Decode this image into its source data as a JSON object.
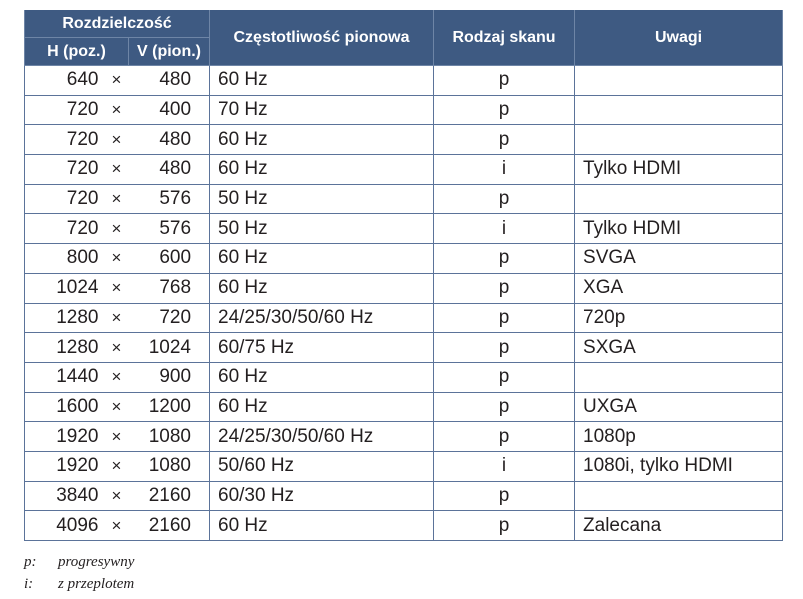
{
  "header": {
    "resolution": "Rozdzielczość",
    "h": "H (poz.)",
    "v": "V (pion.)",
    "freq": "Częstotliwość pionowa",
    "scan": "Rodzaj skanu",
    "notes": "Uwagi"
  },
  "separator": "×",
  "rows": [
    {
      "h": "640",
      "v": "480",
      "f": "60 Hz",
      "s": "p",
      "n": ""
    },
    {
      "h": "720",
      "v": "400",
      "f": "70 Hz",
      "s": "p",
      "n": ""
    },
    {
      "h": "720",
      "v": "480",
      "f": "60 Hz",
      "s": "p",
      "n": ""
    },
    {
      "h": "720",
      "v": "480",
      "f": "60 Hz",
      "s": "i",
      "n": "Tylko HDMI"
    },
    {
      "h": "720",
      "v": "576",
      "f": "50 Hz",
      "s": "p",
      "n": ""
    },
    {
      "h": "720",
      "v": "576",
      "f": "50 Hz",
      "s": "i",
      "n": "Tylko HDMI"
    },
    {
      "h": "800",
      "v": "600",
      "f": "60 Hz",
      "s": "p",
      "n": "SVGA"
    },
    {
      "h": "1024",
      "v": "768",
      "f": "60 Hz",
      "s": "p",
      "n": "XGA"
    },
    {
      "h": "1280",
      "v": "720",
      "f": "24/25/30/50/60 Hz",
      "s": "p",
      "n": "720p"
    },
    {
      "h": "1280",
      "v": "1024",
      "f": "60/75 Hz",
      "s": "p",
      "n": "SXGA"
    },
    {
      "h": "1440",
      "v": "900",
      "f": "60 Hz",
      "s": "p",
      "n": ""
    },
    {
      "h": "1600",
      "v": "1200",
      "f": "60 Hz",
      "s": "p",
      "n": "UXGA"
    },
    {
      "h": "1920",
      "v": "1080",
      "f": "24/25/30/50/60 Hz",
      "s": "p",
      "n": "1080p"
    },
    {
      "h": "1920",
      "v": "1080",
      "f": "50/60 Hz",
      "s": "i",
      "n": "1080i, tylko HDMI"
    },
    {
      "h": "3840",
      "v": "2160",
      "f": "60/30 Hz",
      "s": "p",
      "n": ""
    },
    {
      "h": "4096",
      "v": "2160",
      "f": "60 Hz",
      "s": "p",
      "n": "Zalecana"
    }
  ],
  "legend": [
    {
      "key": "p:",
      "text": "progresywny"
    },
    {
      "key": "i:",
      "text": "z przeplotem"
    }
  ],
  "colors": {
    "header_bg": "#3e5a82",
    "border": "#5b7399"
  }
}
